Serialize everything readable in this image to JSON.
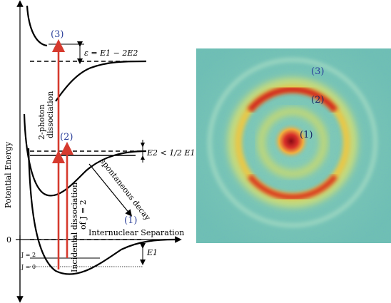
{
  "diagram": {
    "y_axis_label": "Potential Energy",
    "x_axis_label": "Internuclear Separation",
    "zero_label": "0",
    "level_j2": "J = 2",
    "level_j0": "J = 0",
    "label_1": "(1)",
    "label_2": "(2)",
    "label_3": "(3)",
    "two_photon": "2-photon dissociation",
    "two_photon_line1": "2-photon",
    "two_photon_line2": "dissociation",
    "incidental": "Incidental dissociation of J = 2",
    "incidental_line1": "Incidental dissociation",
    "incidental_line2": "of J = 2",
    "spontaneous": "spontaneous decay",
    "epsilon_eq": "ε = E1 − 2E2",
    "e2_eq": "E2 < 1/2 E1",
    "e1": "E1"
  },
  "image": {
    "ring_labels": [
      "(1)",
      "(2)",
      "(3)"
    ],
    "colors": {
      "background": "#79c7b6",
      "ring_red": "#c8201a",
      "ring_yellow": "#f0d040",
      "center": "#a0101a"
    }
  }
}
